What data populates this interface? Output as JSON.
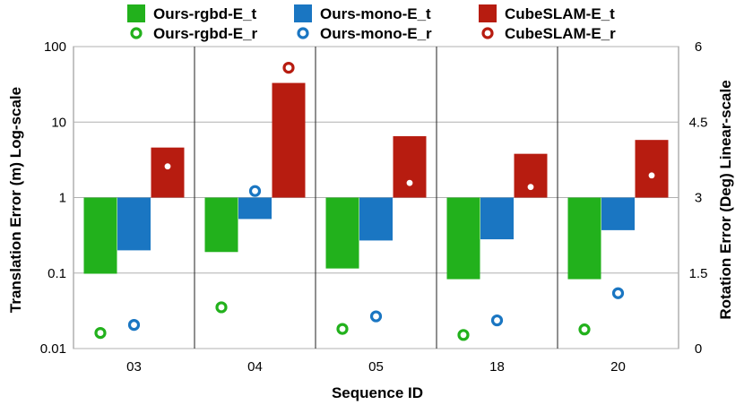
{
  "chart_data": {
    "type": "bar",
    "categories": [
      "03",
      "04",
      "05",
      "18",
      "20"
    ],
    "xlabel": "Sequence ID",
    "ylabel": "Translation Error (m) Log-scale",
    "y2label": "Rotation Error (Deg) Linear-scale",
    "ylim": [
      0.01,
      100
    ],
    "y2lim": [
      0,
      6
    ],
    "y_scale": "log",
    "y2_scale": "linear",
    "y_ticks": [
      "0.01",
      "0.1",
      "1",
      "10",
      "100"
    ],
    "y2_ticks": [
      "0",
      "1.5",
      "3",
      "4.5",
      "6"
    ],
    "baseline": 1,
    "grid": true,
    "legend_position": "top",
    "bar_series": [
      {
        "name": "Ours-rgbd-E_t",
        "color": "#22b11c",
        "values": [
          0.098,
          0.19,
          0.115,
          0.083,
          0.083
        ]
      },
      {
        "name": "Ours-mono-E_t",
        "color": "#1a76c2",
        "values": [
          0.2,
          0.52,
          0.27,
          0.28,
          0.37
        ]
      },
      {
        "name": "CubeSLAM-E_t",
        "color": "#b71c10",
        "values": [
          4.6,
          33.0,
          6.5,
          3.8,
          5.8
        ]
      }
    ],
    "point_series": [
      {
        "name": "Ours-rgbd-E_r",
        "color": "#22b11c",
        "values": [
          0.31,
          0.82,
          0.39,
          0.27,
          0.38
        ]
      },
      {
        "name": "Ours-mono-E_r",
        "color": "#1a76c2",
        "values": [
          0.47,
          3.13,
          0.64,
          0.56,
          1.1
        ]
      },
      {
        "name": "CubeSLAM-E_r",
        "color": "#b71c10",
        "values": [
          3.62,
          5.58,
          3.29,
          3.21,
          3.44
        ]
      }
    ]
  }
}
